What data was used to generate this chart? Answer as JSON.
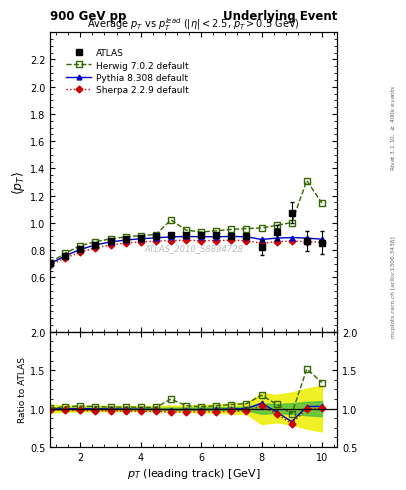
{
  "title_left": "900 GeV pp",
  "title_right": "Underlying Event",
  "plot_title": "Average $p_T$ vs $p_T^{lead}$ ($|\\eta| < 2.5$, $p_T > 0.5$ GeV)",
  "xlabel": "$p_T$ (leading track) [GeV]",
  "ylabel_main": "$\\langle p_T \\rangle$",
  "ylabel_ratio": "Ratio to ATLAS",
  "right_label_top": "Rivet 3.1.10, $\\geq$ 400k events",
  "right_label_bot": "mcplots.cern.ch [arXiv:1306.3436]",
  "watermark": "ATLAS_2010_S8894728",
  "atlas_x": [
    1.0,
    1.5,
    2.0,
    2.5,
    3.0,
    3.5,
    4.0,
    4.5,
    5.0,
    5.5,
    6.0,
    6.5,
    7.0,
    7.5,
    8.0,
    8.5,
    9.0,
    9.5,
    10.0
  ],
  "atlas_y": [
    0.705,
    0.76,
    0.805,
    0.84,
    0.865,
    0.88,
    0.892,
    0.9,
    0.91,
    0.912,
    0.91,
    0.908,
    0.905,
    0.9,
    0.82,
    0.93,
    1.075,
    0.865,
    0.855
  ],
  "atlas_yerr": [
    0.012,
    0.01,
    0.01,
    0.01,
    0.01,
    0.01,
    0.01,
    0.01,
    0.012,
    0.012,
    0.015,
    0.015,
    0.02,
    0.02,
    0.055,
    0.055,
    0.075,
    0.075,
    0.085
  ],
  "herwig_x": [
    1.0,
    1.5,
    2.0,
    2.5,
    3.0,
    3.5,
    4.0,
    4.5,
    5.0,
    5.5,
    6.0,
    6.5,
    7.0,
    7.5,
    8.0,
    8.5,
    9.0,
    9.5,
    10.0
  ],
  "herwig_y": [
    0.707,
    0.778,
    0.832,
    0.862,
    0.882,
    0.897,
    0.907,
    0.914,
    1.022,
    0.947,
    0.932,
    0.942,
    0.952,
    0.958,
    0.962,
    0.982,
    1.002,
    1.31,
    1.145
  ],
  "pythia_x": [
    1.0,
    1.5,
    2.0,
    2.5,
    3.0,
    3.5,
    4.0,
    4.5,
    5.0,
    5.5,
    6.0,
    6.5,
    7.0,
    7.5,
    8.0,
    8.5,
    9.0,
    9.5,
    10.0
  ],
  "pythia_y": [
    0.7,
    0.758,
    0.805,
    0.838,
    0.86,
    0.874,
    0.883,
    0.89,
    0.897,
    0.9,
    0.898,
    0.898,
    0.9,
    0.898,
    0.878,
    0.888,
    0.892,
    0.888,
    0.88
  ],
  "sherpa_x": [
    1.0,
    1.5,
    2.0,
    2.5,
    3.0,
    3.5,
    4.0,
    4.5,
    5.0,
    5.5,
    6.0,
    6.5,
    7.0,
    7.5,
    8.0,
    8.5,
    9.0,
    9.5,
    10.0
  ],
  "sherpa_y": [
    0.69,
    0.742,
    0.785,
    0.815,
    0.838,
    0.852,
    0.86,
    0.866,
    0.87,
    0.872,
    0.87,
    0.87,
    0.872,
    0.87,
    0.85,
    0.862,
    0.866,
    0.862,
    0.858
  ],
  "atlas_color": "#000000",
  "herwig_color": "#336600",
  "pythia_color": "#0000cc",
  "sherpa_color": "#cc0000",
  "band_green": "#44bb44",
  "band_yellow": "#eeee00",
  "ylim_main": [
    0.2,
    2.4
  ],
  "ylim_ratio": [
    0.5,
    2.0
  ],
  "xlim": [
    1.0,
    10.5
  ],
  "yticks_main": [
    0.6,
    0.8,
    1.0,
    1.2,
    1.4,
    1.6,
    1.8,
    2.0,
    2.2
  ],
  "yticks_ratio": [
    0.5,
    1.0,
    1.5,
    2.0
  ]
}
